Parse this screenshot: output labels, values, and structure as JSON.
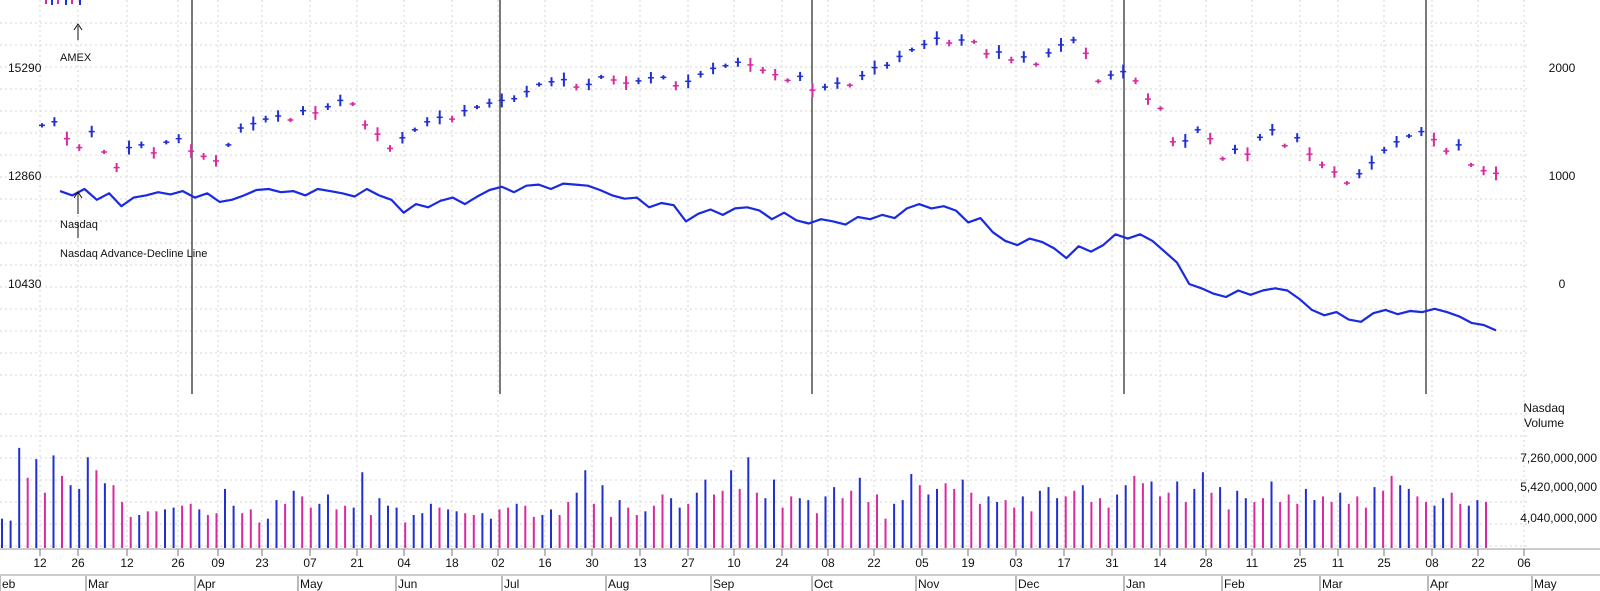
{
  "chart_data": {
    "type": "line",
    "title": "",
    "colors": {
      "up": "#1f2fd0",
      "down": "#d82aa0",
      "ad_line": "#1a2ae0",
      "grid": "#d4d4d4",
      "divider": "#222222"
    },
    "price_axis": {
      "ticks": [
        15290,
        12860,
        10430
      ]
    },
    "ad_axis": {
      "ticks": [
        2000,
        1000,
        0
      ]
    },
    "volume_axis": {
      "title_line1": "Nasdaq",
      "title_line2": "Volume",
      "ticks": [
        "7,260,000,000",
        "5,420,000,000",
        "4,040,000,000"
      ]
    },
    "annotations": {
      "amex": "AMEX",
      "nasdaq": "Nasdaq",
      "ad_line": "Nasdaq Advance-Decline Line"
    },
    "week_labels": [
      "12",
      "26",
      "12",
      "26",
      "09",
      "23",
      "07",
      "21",
      "04",
      "18",
      "02",
      "16",
      "30",
      "13",
      "27",
      "10",
      "24",
      "08",
      "22",
      "05",
      "19",
      "03",
      "17",
      "31",
      "14",
      "28",
      "11",
      "25",
      "11",
      "25",
      "08",
      "22",
      "06"
    ],
    "month_labels": [
      "eb",
      "Mar",
      "Apr",
      "May",
      "Jun",
      "Jul",
      "Aug",
      "Sep",
      "Oct",
      "Nov",
      "Dec",
      "Jan",
      "Feb",
      "Mar",
      "Apr",
      "May"
    ],
    "nasdaq": [
      [
        1,
        14000
      ],
      [
        2,
        14080
      ],
      [
        3,
        13700
      ],
      [
        4,
        13500
      ],
      [
        5,
        13860
      ],
      [
        6,
        13400
      ],
      [
        7,
        13050
      ],
      [
        8,
        13500
      ],
      [
        9,
        13560
      ],
      [
        10,
        13380
      ],
      [
        11,
        13620
      ],
      [
        12,
        13700
      ],
      [
        13,
        13420
      ],
      [
        14,
        13300
      ],
      [
        15,
        13200
      ],
      [
        16,
        13560
      ],
      [
        17,
        13940
      ],
      [
        18,
        14040
      ],
      [
        19,
        14140
      ],
      [
        20,
        14210
      ],
      [
        21,
        14120
      ],
      [
        22,
        14330
      ],
      [
        23,
        14280
      ],
      [
        24,
        14420
      ],
      [
        25,
        14560
      ],
      [
        26,
        14480
      ],
      [
        27,
        14010
      ],
      [
        28,
        13800
      ],
      [
        29,
        13480
      ],
      [
        30,
        13720
      ],
      [
        31,
        13900
      ],
      [
        32,
        14080
      ],
      [
        33,
        14180
      ],
      [
        34,
        14140
      ],
      [
        35,
        14330
      ],
      [
        36,
        14410
      ],
      [
        37,
        14500
      ],
      [
        38,
        14560
      ],
      [
        39,
        14600
      ],
      [
        40,
        14760
      ],
      [
        41,
        14920
      ],
      [
        42,
        14980
      ],
      [
        43,
        15030
      ],
      [
        44,
        14860
      ],
      [
        45,
        14920
      ],
      [
        46,
        15090
      ],
      [
        47,
        15020
      ],
      [
        48,
        14950
      ],
      [
        49,
        15000
      ],
      [
        50,
        15070
      ],
      [
        51,
        15080
      ],
      [
        52,
        14890
      ],
      [
        53,
        14990
      ],
      [
        54,
        15150
      ],
      [
        55,
        15280
      ],
      [
        56,
        15340
      ],
      [
        57,
        15420
      ],
      [
        58,
        15360
      ],
      [
        59,
        15240
      ],
      [
        60,
        15140
      ],
      [
        61,
        15010
      ],
      [
        62,
        15100
      ],
      [
        63,
        14790
      ],
      [
        64,
        14860
      ],
      [
        65,
        14950
      ],
      [
        66,
        14900
      ],
      [
        67,
        15120
      ],
      [
        68,
        15300
      ],
      [
        69,
        15350
      ],
      [
        70,
        15550
      ],
      [
        71,
        15700
      ],
      [
        72,
        15820
      ],
      [
        73,
        15960
      ],
      [
        74,
        15850
      ],
      [
        75,
        15920
      ],
      [
        76,
        15880
      ],
      [
        77,
        15610
      ],
      [
        78,
        15650
      ],
      [
        79,
        15470
      ],
      [
        80,
        15540
      ],
      [
        81,
        15370
      ],
      [
        82,
        15630
      ],
      [
        83,
        15810
      ],
      [
        84,
        15920
      ],
      [
        85,
        15620
      ],
      [
        86,
        14990
      ],
      [
        87,
        15130
      ],
      [
        88,
        15210
      ],
      [
        89,
        15000
      ],
      [
        90,
        14590
      ],
      [
        91,
        14380
      ],
      [
        92,
        13630
      ],
      [
        93,
        13650
      ],
      [
        94,
        13900
      ],
      [
        95,
        13700
      ],
      [
        96,
        13250
      ],
      [
        97,
        13460
      ],
      [
        98,
        13350
      ],
      [
        99,
        13730
      ],
      [
        100,
        13900
      ],
      [
        101,
        13540
      ],
      [
        102,
        13720
      ],
      [
        103,
        13350
      ],
      [
        104,
        13110
      ],
      [
        105,
        12950
      ],
      [
        106,
        12700
      ],
      [
        107,
        12910
      ],
      [
        108,
        13160
      ],
      [
        109,
        13440
      ],
      [
        110,
        13630
      ],
      [
        111,
        13760
      ],
      [
        112,
        13860
      ],
      [
        113,
        13680
      ],
      [
        114,
        13420
      ],
      [
        115,
        13560
      ],
      [
        116,
        13110
      ],
      [
        117,
        12980
      ],
      [
        118,
        12920
      ]
    ],
    "ad_line": [
      [
        0,
        860
      ],
      [
        1,
        820
      ],
      [
        2,
        880
      ],
      [
        3,
        780
      ],
      [
        4,
        840
      ],
      [
        5,
        720
      ],
      [
        6,
        800
      ],
      [
        7,
        820
      ],
      [
        8,
        850
      ],
      [
        9,
        830
      ],
      [
        10,
        860
      ],
      [
        11,
        800
      ],
      [
        12,
        840
      ],
      [
        13,
        760
      ],
      [
        14,
        780
      ],
      [
        15,
        820
      ],
      [
        16,
        870
      ],
      [
        17,
        880
      ],
      [
        18,
        850
      ],
      [
        19,
        860
      ],
      [
        20,
        820
      ],
      [
        21,
        880
      ],
      [
        22,
        860
      ],
      [
        23,
        840
      ],
      [
        24,
        810
      ],
      [
        25,
        880
      ],
      [
        26,
        820
      ],
      [
        27,
        780
      ],
      [
        28,
        660
      ],
      [
        29,
        740
      ],
      [
        30,
        710
      ],
      [
        31,
        770
      ],
      [
        32,
        800
      ],
      [
        33,
        740
      ],
      [
        34,
        810
      ],
      [
        35,
        870
      ],
      [
        36,
        900
      ],
      [
        37,
        850
      ],
      [
        38,
        910
      ],
      [
        39,
        920
      ],
      [
        40,
        880
      ],
      [
        41,
        930
      ],
      [
        42,
        920
      ],
      [
        43,
        910
      ],
      [
        44,
        870
      ],
      [
        45,
        820
      ],
      [
        46,
        790
      ],
      [
        47,
        800
      ],
      [
        48,
        710
      ],
      [
        49,
        750
      ],
      [
        50,
        730
      ],
      [
        51,
        580
      ],
      [
        52,
        650
      ],
      [
        53,
        690
      ],
      [
        54,
        640
      ],
      [
        55,
        700
      ],
      [
        56,
        710
      ],
      [
        57,
        680
      ],
      [
        58,
        600
      ],
      [
        59,
        660
      ],
      [
        60,
        590
      ],
      [
        61,
        560
      ],
      [
        62,
        600
      ],
      [
        63,
        580
      ],
      [
        64,
        550
      ],
      [
        65,
        620
      ],
      [
        66,
        600
      ],
      [
        67,
        640
      ],
      [
        68,
        610
      ],
      [
        69,
        700
      ],
      [
        70,
        740
      ],
      [
        71,
        700
      ],
      [
        72,
        720
      ],
      [
        73,
        680
      ],
      [
        74,
        570
      ],
      [
        75,
        610
      ],
      [
        76,
        480
      ],
      [
        77,
        400
      ],
      [
        78,
        360
      ],
      [
        79,
        420
      ],
      [
        80,
        390
      ],
      [
        81,
        330
      ],
      [
        82,
        240
      ],
      [
        83,
        350
      ],
      [
        84,
        300
      ],
      [
        85,
        360
      ],
      [
        86,
        460
      ],
      [
        87,
        420
      ],
      [
        88,
        460
      ],
      [
        89,
        400
      ],
      [
        90,
        300
      ],
      [
        91,
        200
      ],
      [
        92,
        0
      ],
      [
        93,
        -40
      ],
      [
        94,
        -90
      ],
      [
        95,
        -120
      ],
      [
        96,
        -60
      ],
      [
        97,
        -100
      ],
      [
        98,
        -60
      ],
      [
        99,
        -40
      ],
      [
        100,
        -60
      ],
      [
        101,
        -140
      ],
      [
        102,
        -240
      ],
      [
        103,
        -290
      ],
      [
        104,
        -260
      ],
      [
        105,
        -330
      ],
      [
        106,
        -350
      ],
      [
        107,
        -270
      ],
      [
        108,
        -240
      ],
      [
        109,
        -280
      ],
      [
        110,
        -250
      ],
      [
        111,
        -260
      ],
      [
        112,
        -230
      ],
      [
        113,
        -260
      ],
      [
        114,
        -300
      ],
      [
        115,
        -360
      ],
      [
        116,
        -380
      ],
      [
        117,
        -430
      ]
    ],
    "volume_billions": [
      4.0,
      3.9,
      7.8,
      6.2,
      7.2,
      5.4,
      7.4,
      6.3,
      5.8,
      5.6,
      7.3,
      6.6,
      5.9,
      5.8,
      4.9,
      4.1,
      4.2,
      4.4,
      4.4,
      4.5,
      4.6,
      4.7,
      4.8,
      4.5,
      4.2,
      4.3,
      5.6,
      4.7,
      4.3,
      4.5,
      3.8,
      4.0,
      5.0,
      4.8,
      5.5,
      5.2,
      4.6,
      4.8,
      5.3,
      4.5,
      4.7,
      4.6,
      6.5,
      4.2,
      5.1,
      4.7,
      4.6,
      3.8,
      4.2,
      4.3,
      4.8,
      4.6,
      4.5,
      4.4,
      4.3,
      4.2,
      4.3,
      4.0,
      4.5,
      4.6,
      4.8,
      4.7,
      4.1,
      4.2,
      4.5,
      4.2,
      4.9,
      5.4,
      6.6,
      4.8,
      5.8,
      4.1,
      5.0,
      4.6,
      4.2,
      4.4,
      4.7,
      5.3,
      5.1,
      4.6,
      4.8,
      5.4,
      6.1,
      5.3,
      5.5,
      6.6,
      5.6,
      7.3,
      5.4,
      5.1,
      6.1,
      4.6,
      5.2,
      5.1,
      5.0,
      4.3,
      5.2,
      5.7,
      5.1,
      5.5,
      6.2,
      4.9,
      5.3,
      4.0,
      4.8,
      5.0,
      6.4,
      5.8,
      5.3,
      5.6,
      5.9,
      5.6,
      6.1,
      5.4,
      4.8,
      5.2,
      4.9,
      5.0,
      4.6,
      5.2,
      4.4,
      5.5,
      5.7,
      5.1,
      5.2,
      5.5,
      5.8,
      4.9,
      5.1,
      4.6,
      5.3,
      5.8,
      6.3,
      5.9,
      6.0,
      5.2,
      5.4,
      6.0,
      4.9,
      5.6,
      6.5,
      5.4,
      5.7,
      4.5,
      5.5,
      5.1,
      4.9,
      5.1,
      6.0,
      4.9,
      5.3,
      4.8,
      5.6,
      5.0,
      5.2,
      4.9,
      5.4,
      4.8,
      5.2,
      4.6,
      5.7,
      5.5,
      6.3,
      5.8,
      5.6,
      5.2,
      4.9,
      4.7,
      5.1,
      5.4,
      4.8,
      4.7,
      5.0,
      4.9
    ]
  }
}
